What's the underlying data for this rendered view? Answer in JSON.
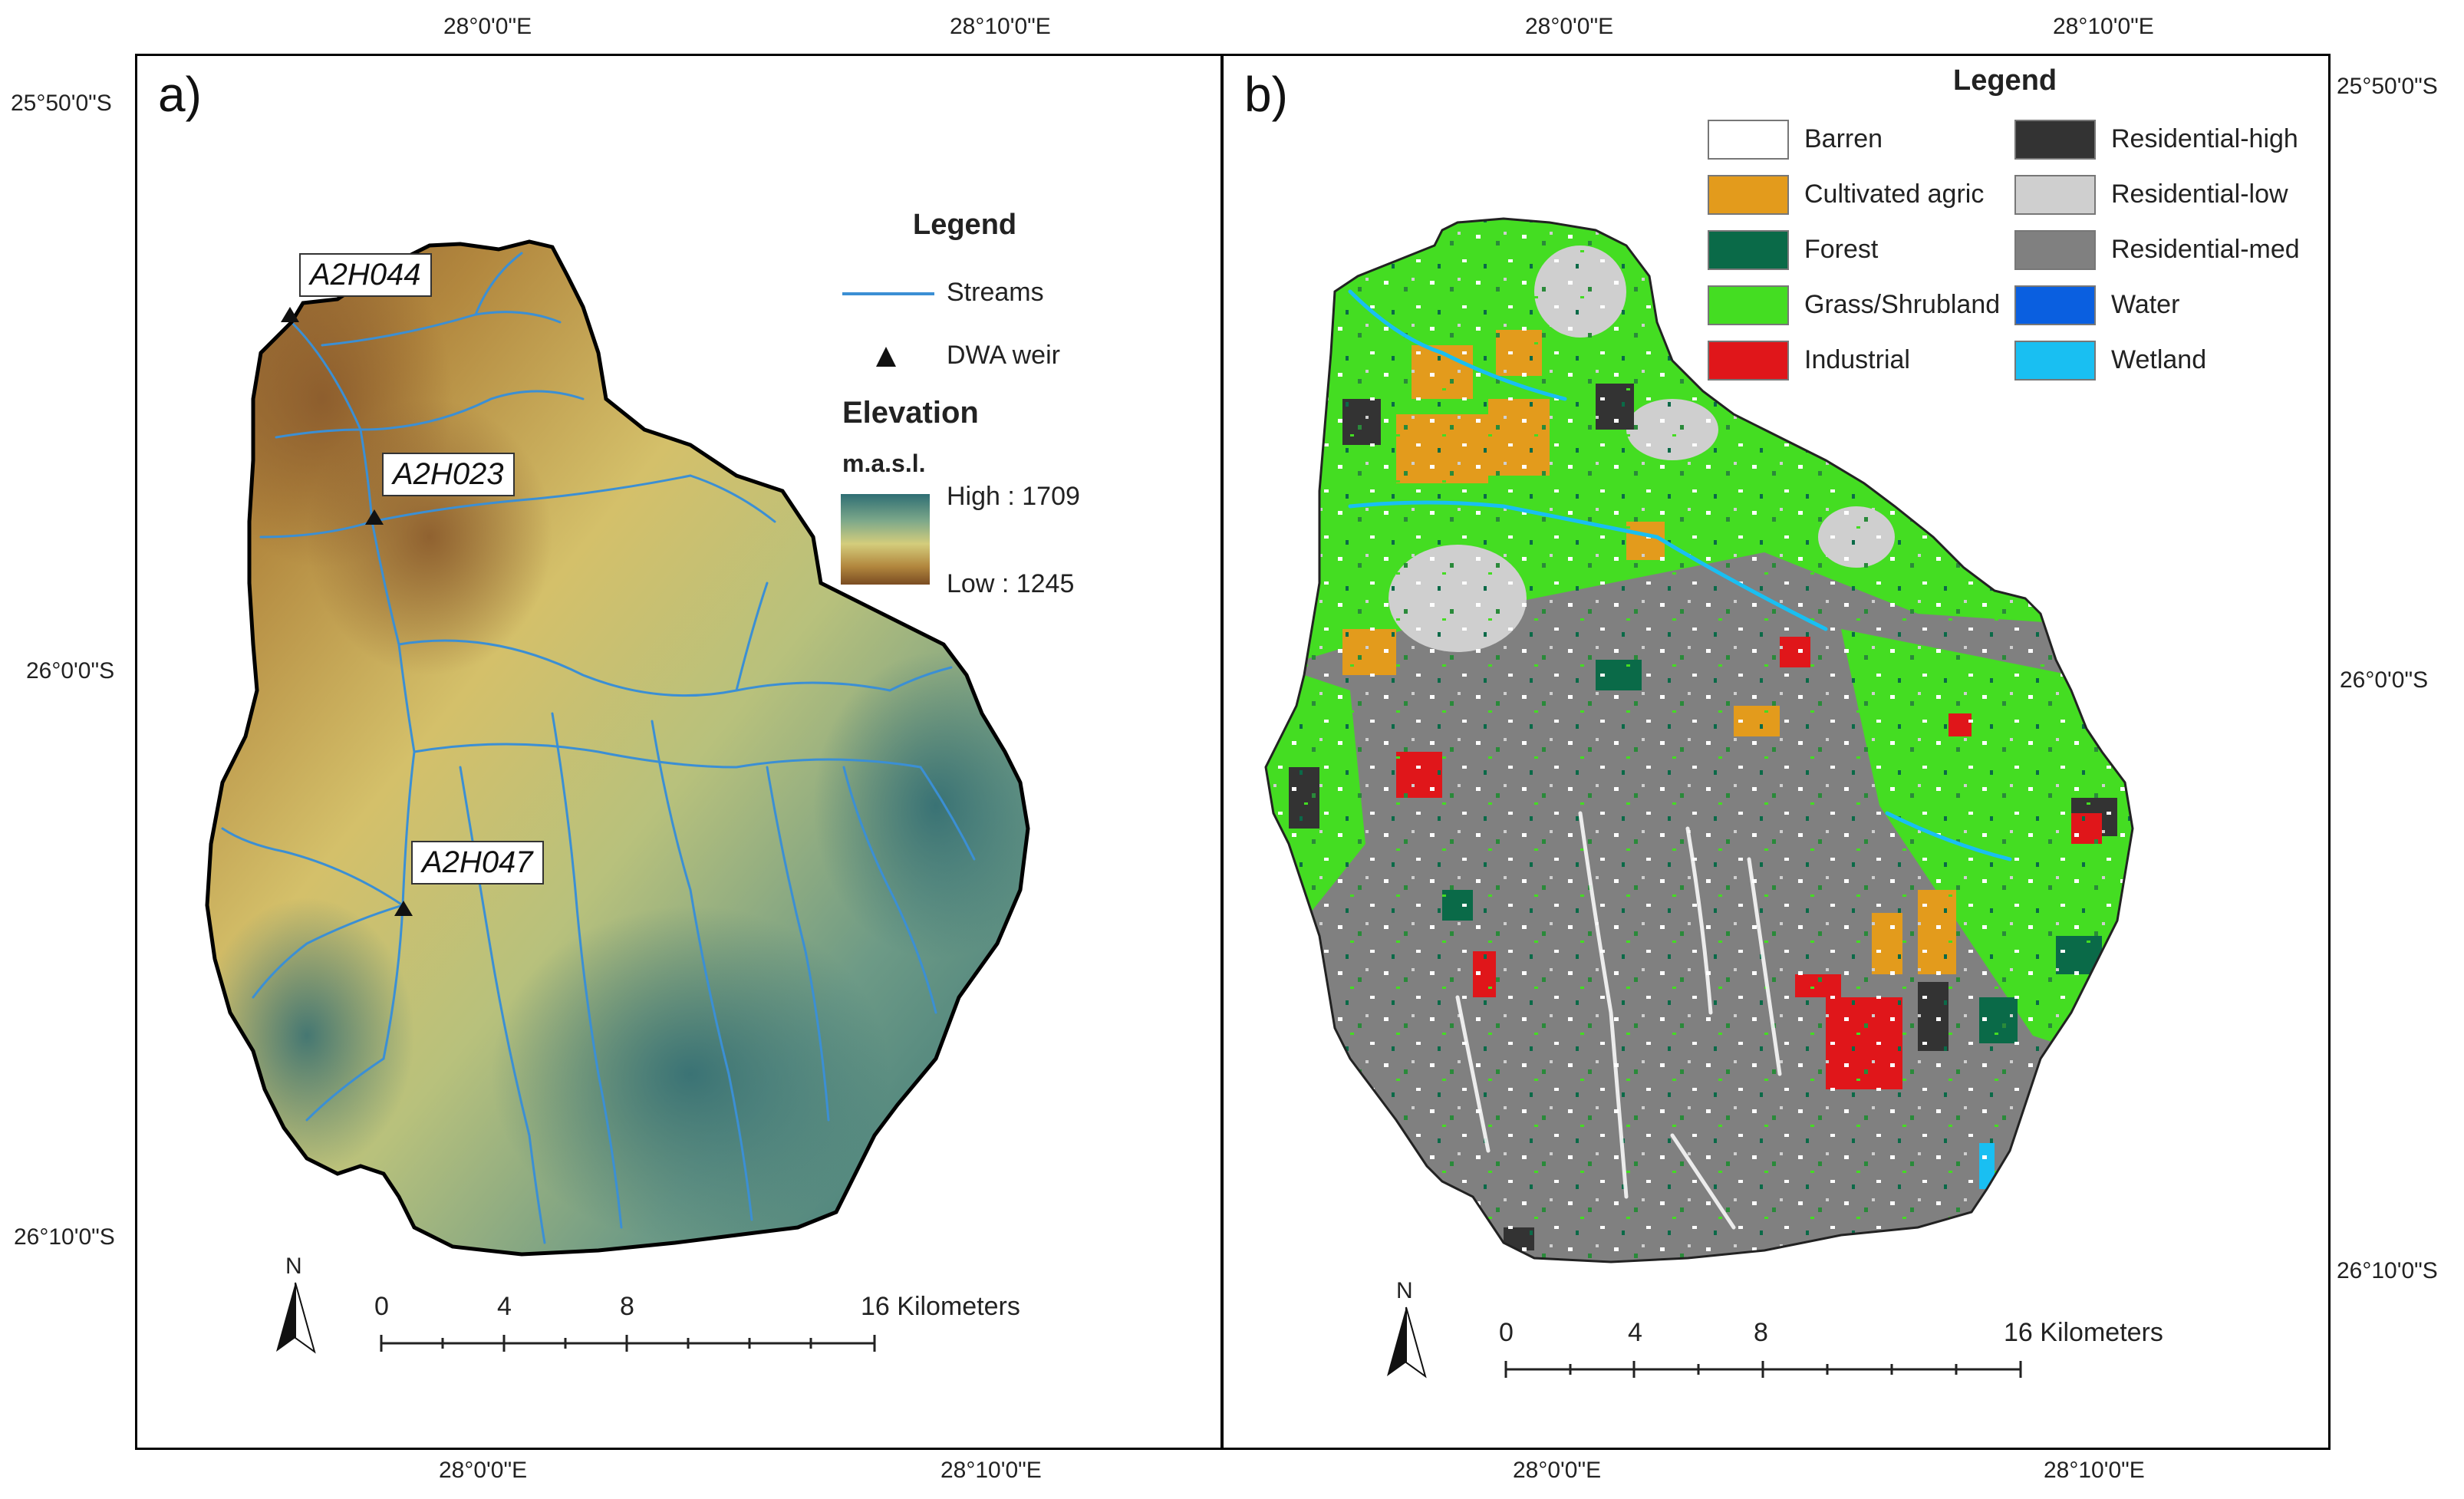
{
  "panel_a": {
    "label": "a)",
    "legend": {
      "title": "Legend",
      "streams": "Streams",
      "weir": "DWA weir",
      "elevation_title": "Elevation",
      "units": "m.a.s.l.",
      "high": "High : 1709",
      "low": "Low : 1245"
    },
    "stations": [
      "A2H044",
      "A2H023",
      "A2H047"
    ],
    "scale": {
      "ticks": [
        "0",
        "4",
        "8",
        "16 Kilometers"
      ],
      "north": "N"
    },
    "x_ticks": [
      "28°0'0\"E",
      "28°10'0\"E"
    ],
    "y_ticks": [
      "25°50'0\"S",
      "26°0'0\"S",
      "26°10'0\"S"
    ]
  },
  "panel_b": {
    "label": "b)",
    "legend": {
      "title": "Legend",
      "items": [
        {
          "label": "Barren",
          "color": "#ffffff"
        },
        {
          "label": "Cultivated agric",
          "color": "#e39b1c"
        },
        {
          "label": "Forest",
          "color": "#0a6a48"
        },
        {
          "label": "Grass/Shrubland",
          "color": "#44dd22"
        },
        {
          "label": "Industrial",
          "color": "#e0161a"
        },
        {
          "label": "Residential-high",
          "color": "#333333"
        },
        {
          "label": "Residential-low",
          "color": "#cfcfcf"
        },
        {
          "label": "Residential-med",
          "color": "#808080"
        },
        {
          "label": "Water",
          "color": "#0a5fe0"
        },
        {
          "label": "Wetland",
          "color": "#19bff2"
        }
      ]
    },
    "scale": {
      "ticks": [
        "0",
        "4",
        "8",
        "16 Kilometers"
      ],
      "north": "N"
    },
    "x_ticks": [
      "28°0'0\"E",
      "28°10'0\"E"
    ],
    "y_ticks": [
      "25°50'0\"S",
      "26°0'0\"S",
      "26°10'0\"S"
    ]
  }
}
